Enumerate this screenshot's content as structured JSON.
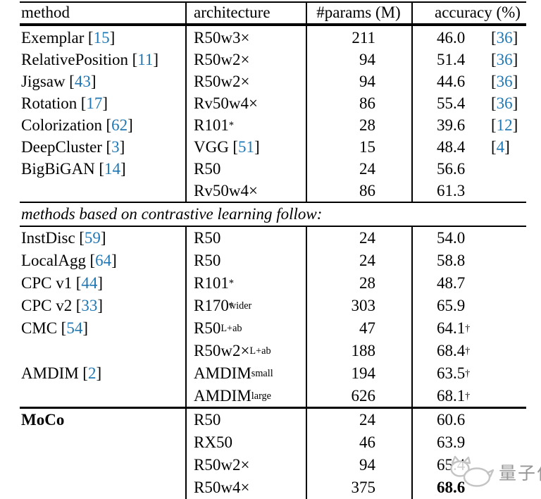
{
  "header": {
    "method": "method",
    "architecture": "architecture",
    "params": "#params (M)",
    "accuracy": "accuracy (%)"
  },
  "section_note": "methods based on contrastive learning follow:",
  "watermark": {
    "text": "量子位",
    "logo": "qbitai-mascot"
  },
  "colors": {
    "citation_blue": "#1f77b4",
    "text": "#000000",
    "rule": "#000000",
    "watermark_text_gray": "#979797",
    "watermark_logo_gray": "#c4c4c4",
    "background": "#ffffff"
  },
  "groups": {
    "top": [
      {
        "method": {
          "name": "Exemplar",
          "open": "[",
          "num": "15",
          "close": "]"
        },
        "arch": {
          "base": "R50w3×"
        },
        "params": "211",
        "acc": {
          "val": "46.0",
          "open": "[",
          "num": "36",
          "close": "]"
        }
      },
      {
        "method": {
          "name": "RelativePosition",
          "open": "[",
          "num": "11",
          "close": "]"
        },
        "arch": {
          "base": "R50w2×"
        },
        "params": "94",
        "acc": {
          "val": "51.4",
          "open": "[",
          "num": "36",
          "close": "]"
        }
      },
      {
        "method": {
          "name": "Jigsaw",
          "open": "[",
          "num": "43",
          "close": "]"
        },
        "arch": {
          "base": "R50w2×"
        },
        "params": "94",
        "acc": {
          "val": "44.6",
          "open": "[",
          "num": "36",
          "close": "]"
        }
      },
      {
        "method": {
          "name": "Rotation",
          "open": "[",
          "num": "17",
          "close": "]"
        },
        "arch": {
          "base": "Rv50w4×"
        },
        "params": "86",
        "acc": {
          "val": "55.4",
          "open": "[",
          "num": "36",
          "close": "]"
        }
      },
      {
        "method": {
          "name": "Colorization",
          "open": "[",
          "num": "62",
          "close": "]"
        },
        "arch": {
          "base": "R101",
          "sup": "*"
        },
        "params": "28",
        "acc": {
          "val": "39.6",
          "open": "[",
          "num": "12",
          "close": "]"
        }
      },
      {
        "method": {
          "name": "DeepCluster",
          "open": "[",
          "num": "3",
          "close": "]"
        },
        "arch": {
          "base": "VGG",
          "open": "[",
          "num": "51",
          "close": "]"
        },
        "params": "15",
        "acc": {
          "val": "48.4",
          "open": "[",
          "num": "4",
          "close": "]"
        }
      },
      {
        "method": {
          "name": "BigBiGAN",
          "open": "[",
          "num": "14",
          "close": "]"
        },
        "arch": {
          "base": "R50"
        },
        "params": "24",
        "acc": {
          "val": "56.6"
        }
      },
      {
        "arch": {
          "base": "Rv50w4×"
        },
        "params": "86",
        "acc": {
          "val": "61.3"
        }
      }
    ],
    "contrastive": [
      {
        "method": {
          "name": "InstDisc",
          "open": "[",
          "num": "59",
          "close": "]"
        },
        "arch": {
          "base": "R50"
        },
        "params": "24",
        "acc": {
          "val": "54.0"
        }
      },
      {
        "method": {
          "name": "LocalAgg",
          "open": "[",
          "num": "64",
          "close": "]"
        },
        "arch": {
          "base": "R50"
        },
        "params": "24",
        "acc": {
          "val": "58.8"
        }
      },
      {
        "method": {
          "name": "CPC v1",
          "open": "[",
          "num": "44",
          "close": "]"
        },
        "arch": {
          "base": "R101",
          "sup": "*"
        },
        "params": "28",
        "acc": {
          "val": "48.7"
        }
      },
      {
        "method": {
          "name": "CPC v2",
          "open": "[",
          "num": "33",
          "close": "]"
        },
        "arch": {
          "base": "R170",
          "sup": "*",
          "sub": "wider"
        },
        "params": "303",
        "acc": {
          "val": "65.9"
        }
      },
      {
        "method": {
          "name": "CMC",
          "open": "[",
          "num": "54",
          "close": "]"
        },
        "arch": {
          "base": "R50",
          "sub": "L+ab"
        },
        "params": "47",
        "acc": {
          "val": "64.1",
          "sup": "†"
        }
      },
      {
        "arch": {
          "base": "R50w2×",
          "sub": "L+ab"
        },
        "params": "188",
        "acc": {
          "val": "68.4",
          "sup": "†"
        }
      },
      {
        "method": {
          "name": "AMDIM",
          "open": "[",
          "num": "2",
          "close": "]"
        },
        "arch": {
          "base": "AMDIM",
          "sub": "small"
        },
        "params": "194",
        "acc": {
          "val": "63.5",
          "sup": "†"
        }
      },
      {
        "arch": {
          "base": "AMDIM",
          "sub": "large"
        },
        "params": "626",
        "acc": {
          "val": "68.1",
          "sup": "†"
        }
      }
    ],
    "moco": [
      {
        "method": {
          "name": "MoCo",
          "bold": true
        },
        "arch": {
          "base": "R50"
        },
        "params": "24",
        "acc": {
          "val": "60.6"
        }
      },
      {
        "arch": {
          "base": "RX50"
        },
        "params": "46",
        "acc": {
          "val": "63.9"
        }
      },
      {
        "arch": {
          "base": "R50w2×"
        },
        "params": "94",
        "acc": {
          "val": "65.4"
        }
      },
      {
        "arch": {
          "base": "R50w4×"
        },
        "params": "375",
        "acc": {
          "val": "68.6",
          "bold": true
        }
      }
    ]
  }
}
